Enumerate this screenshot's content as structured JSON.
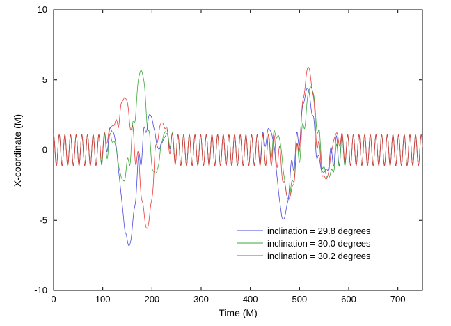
{
  "chart_data": {
    "type": "line",
    "xlabel": "Time   (M)",
    "ylabel": "X-coordinate   (M)",
    "xlim": [
      0,
      750
    ],
    "ylim": [
      -10,
      10
    ],
    "xticks": [
      0,
      100,
      200,
      300,
      400,
      500,
      600,
      700
    ],
    "yticks": [
      -10,
      -5,
      0,
      5,
      10
    ],
    "grid": false,
    "legend_position": "bottom-right",
    "series": [
      {
        "name": "inclination = 29.8 degrees",
        "color": "#4a4adc",
        "baseline_oscillation": {
          "amplitude": 1.1,
          "period": 11.5,
          "phase": 0
        },
        "peaks": [
          {
            "x": 124,
            "y": 2.2
          },
          {
            "x": 137,
            "y": -2.8
          },
          {
            "x": 155,
            "y": -6.2
          },
          {
            "x": 199,
            "y": 3.1
          },
          {
            "x": 212,
            "y": -1.9
          },
          {
            "x": 224,
            "y": 1.6
          },
          {
            "x": 443,
            "y": 1.9
          },
          {
            "x": 457,
            "y": -1.5
          },
          {
            "x": 469,
            "y": -4.2
          },
          {
            "x": 516,
            "y": 4.4
          },
          {
            "x": 549,
            "y": -1.6
          }
        ]
      },
      {
        "name": "inclination = 30.0 degrees",
        "color": "#3aa83a",
        "baseline_oscillation": {
          "amplitude": 1.1,
          "period": 11.5,
          "phase": 0
        },
        "peaks": [
          {
            "x": 127,
            "y": 1.7
          },
          {
            "x": 138,
            "y": -2.9
          },
          {
            "x": 178,
            "y": 5.7
          },
          {
            "x": 209,
            "y": -2.2
          },
          {
            "x": 224,
            "y": 1.8
          },
          {
            "x": 461,
            "y": 2.0
          },
          {
            "x": 475,
            "y": -4.1
          },
          {
            "x": 523,
            "y": 4.5
          },
          {
            "x": 558,
            "y": -2.0
          }
        ]
      },
      {
        "name": "inclination = 30.2 degrees",
        "color": "#e83a3a",
        "baseline_oscillation": {
          "amplitude": 1.1,
          "period": 11.5,
          "phase": 0
        },
        "peaks": [
          {
            "x": 119,
            "y": 1.6
          },
          {
            "x": 145,
            "y": 3.7
          },
          {
            "x": 190,
            "y": -5.6
          },
          {
            "x": 220,
            "y": 2.0
          },
          {
            "x": 478,
            "y": -3.5
          },
          {
            "x": 518,
            "y": 5.9
          },
          {
            "x": 556,
            "y": -2.6
          },
          {
            "x": 570,
            "y": 1.7
          }
        ]
      }
    ]
  }
}
